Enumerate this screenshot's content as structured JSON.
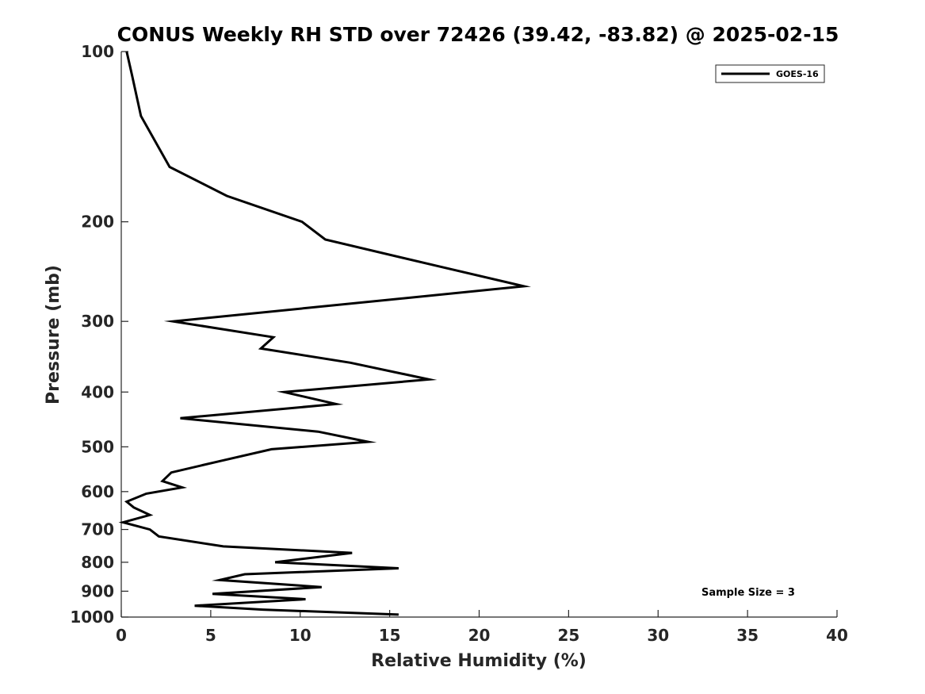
{
  "chart_data": {
    "type": "line",
    "title": "CONUS Weekly RH STD over 72426 (39.42, -83.82) @ 2025-02-15",
    "xlabel": "Relative Humidity (%)",
    "ylabel": "Pressure (mb)",
    "xlim": [
      0,
      40
    ],
    "ylim": [
      1000,
      100
    ],
    "y_scale": "log",
    "y_reversed": true,
    "x_ticks": [
      0,
      5,
      10,
      15,
      20,
      25,
      30,
      35,
      40
    ],
    "y_ticks": [
      100,
      200,
      300,
      400,
      500,
      600,
      700,
      800,
      900,
      1000
    ],
    "grid": false,
    "legend_position": "top-right",
    "series": [
      {
        "name": "GOES-16",
        "color": "#000000",
        "x": [
          0.3,
          0.6,
          1.1,
          2.7,
          5.9,
          10.1,
          11.4,
          17.8,
          22.5,
          2.9,
          8.5,
          7.8,
          12.8,
          17.2,
          9.1,
          12.0,
          3.3,
          11.0,
          13.8,
          8.4,
          5.5,
          2.8,
          2.3,
          3.4,
          1.4,
          0.3,
          0.7,
          1.6,
          0.1,
          1.6,
          2.1,
          5.7,
          12.9,
          8.6,
          15.5,
          6.9,
          5.5,
          11.2,
          5.1,
          10.3,
          4.1,
          7.9,
          15.5
        ],
        "y": [
          100,
          110,
          130,
          160,
          180,
          200,
          215,
          240,
          260,
          300,
          320,
          335,
          355,
          380,
          400,
          420,
          445,
          470,
          490,
          505,
          530,
          555,
          575,
          590,
          605,
          625,
          640,
          660,
          680,
          700,
          720,
          750,
          770,
          800,
          820,
          840,
          860,
          885,
          910,
          930,
          955,
          970,
          990
        ]
      }
    ],
    "annotation": "Sample Size = 3"
  }
}
